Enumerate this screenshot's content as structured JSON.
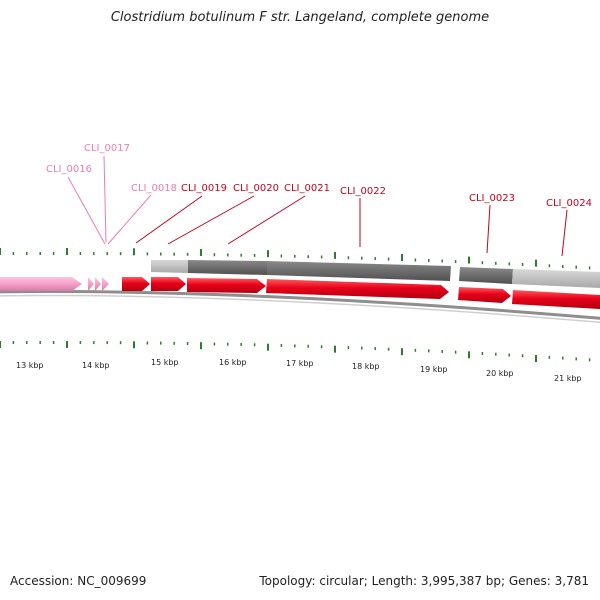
{
  "title": "Clostridium botulinum F str. Langeland, complete genome",
  "footer": {
    "accession": "Accession: NC_009699",
    "stats": "Topology: circular; Length: 3,995,387 bp; Genes: 3,781"
  },
  "colors": {
    "gene_light": "#f4a0c8",
    "gene_dark": "#e8001a",
    "label_light": "#f07ab4",
    "label_dark": "#c8001a",
    "band_light": "#c4c4c4",
    "band_dark": "#6e6e6e",
    "tick": "#2e7d2e",
    "backbone": "#8e8e8e"
  },
  "scale": {
    "labels": [
      "13 kbp",
      "14 kbp",
      "15 kbp",
      "16 kbp",
      "17 kbp",
      "18 kbp",
      "19 kbp",
      "20 kbp",
      "21 kbp"
    ]
  },
  "genes": [
    {
      "name": "CLI_0016",
      "style": "light"
    },
    {
      "name": "CLI_0017",
      "style": "light"
    },
    {
      "name": "CLI_0018",
      "style": "light"
    },
    {
      "name": "CLI_0019",
      "style": "dark"
    },
    {
      "name": "CLI_0020",
      "style": "dark"
    },
    {
      "name": "CLI_0021",
      "style": "dark"
    },
    {
      "name": "CLI_0022",
      "style": "dark"
    },
    {
      "name": "CLI_0023",
      "style": "dark"
    },
    {
      "name": "CLI_0024",
      "style": "dark"
    }
  ]
}
